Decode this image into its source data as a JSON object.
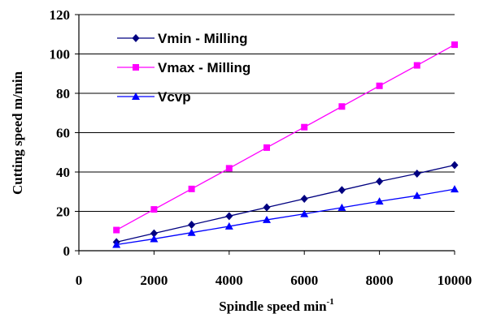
{
  "chart_data": {
    "type": "line",
    "xlabel": "Spindle speed min",
    "xlabel_superscript": "-1",
    "ylabel": "Cutting speed m/min",
    "xlim": [
      0,
      10000
    ],
    "ylim": [
      0,
      120
    ],
    "x_ticks": [
      0,
      2000,
      4000,
      6000,
      8000,
      10000
    ],
    "y_ticks": [
      0,
      20,
      40,
      60,
      80,
      100,
      120
    ],
    "grid": "horizontal",
    "legend_position": "top-left",
    "x": [
      1000,
      2000,
      3000,
      4000,
      5000,
      6000,
      7000,
      8000,
      9000,
      10000
    ],
    "series": [
      {
        "name": "Vmin - Milling",
        "color": "#000080",
        "marker": "diamond",
        "values": [
          4.4,
          8.8,
          13.2,
          17.6,
          22.0,
          26.4,
          30.8,
          35.2,
          39.2,
          43.5
        ]
      },
      {
        "name": "Vmax - Milling",
        "color": "#ff00ff",
        "marker": "square",
        "values": [
          10.5,
          21.0,
          31.4,
          41.9,
          52.4,
          62.8,
          73.3,
          83.8,
          94.2,
          104.7
        ]
      },
      {
        "name": "Vcvp",
        "color": "#0000ff",
        "marker": "triangle",
        "values": [
          3.1,
          6.0,
          9.2,
          12.4,
          15.7,
          18.7,
          21.9,
          25.1,
          28.0,
          31.3
        ]
      }
    ]
  }
}
